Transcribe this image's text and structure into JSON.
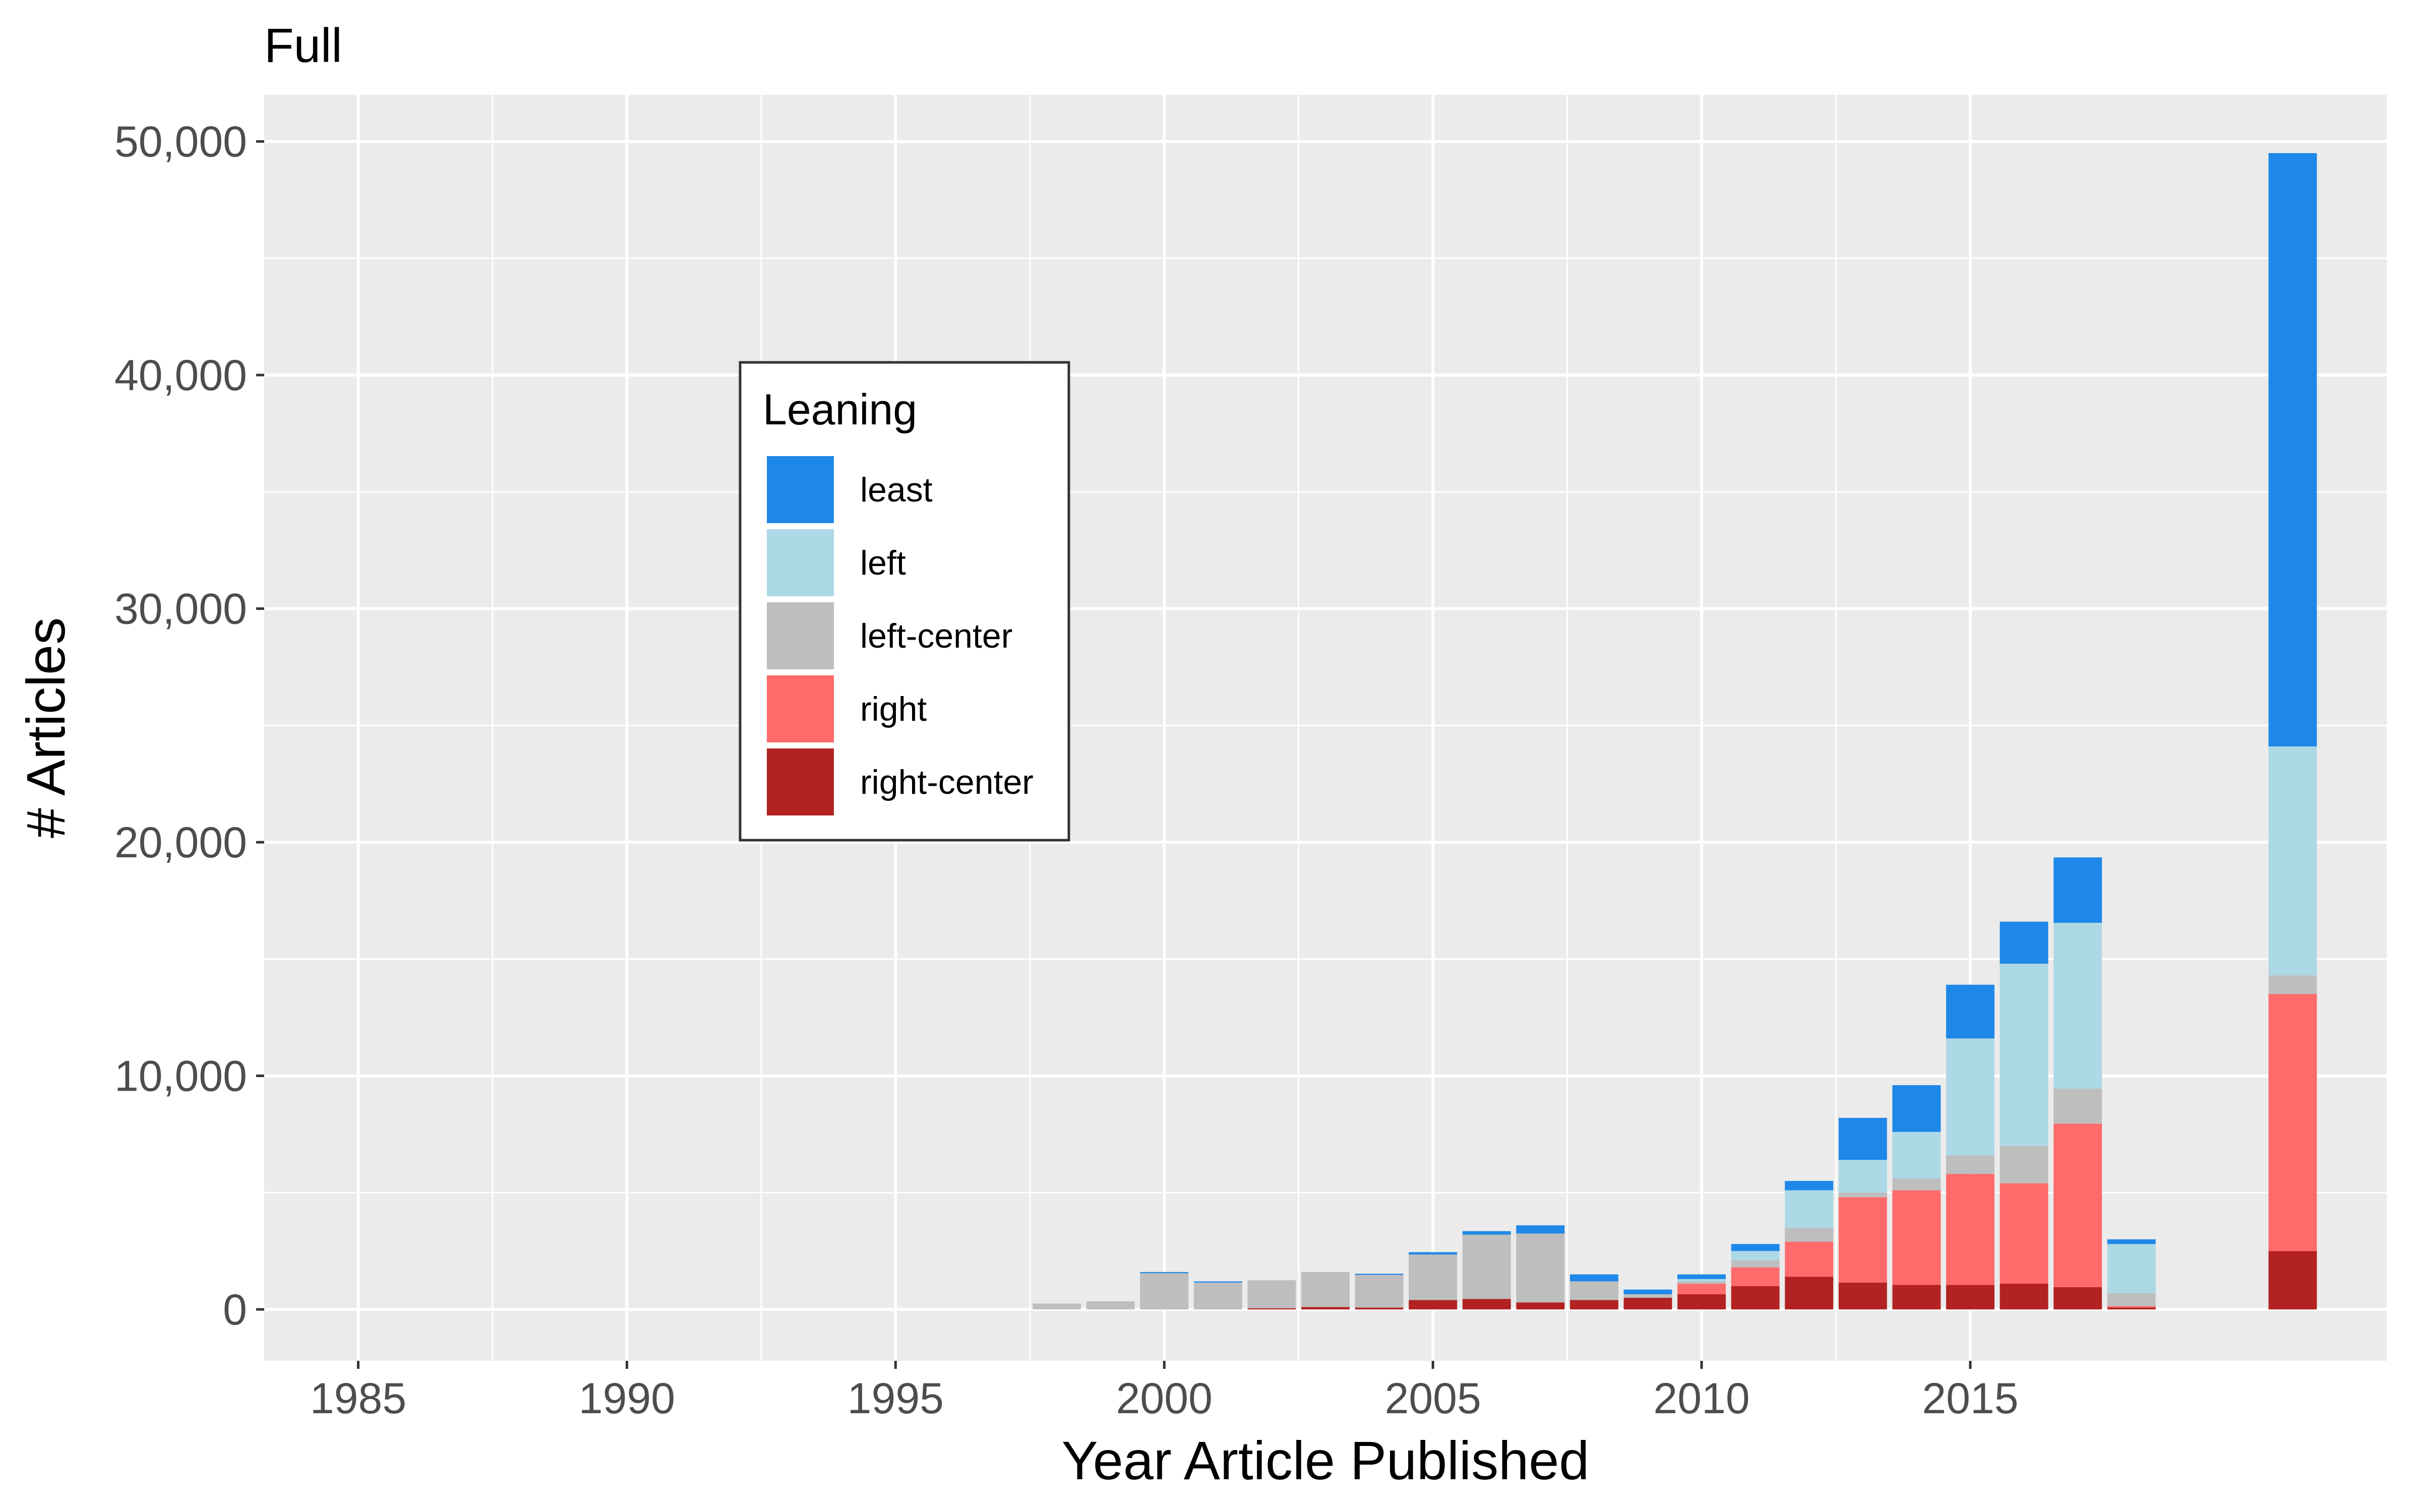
{
  "chart_data": {
    "type": "bar",
    "stacked": true,
    "title": "Full",
    "xlabel": "Year Article Published",
    "ylabel": "# Articles",
    "xlim": [
      1983.25,
      2022.75
    ],
    "ylim": [
      -2200,
      52000
    ],
    "x_ticks": [
      1985,
      1990,
      1995,
      2000,
      2005,
      2010,
      2015
    ],
    "x_tick_labels": [
      "1985",
      "1990",
      "1995",
      "2000",
      "2005",
      "2010",
      "2015"
    ],
    "y_ticks": [
      0,
      10000,
      20000,
      30000,
      40000,
      50000
    ],
    "y_tick_labels": [
      "0",
      "10,000",
      "20,000",
      "30,000",
      "40,000",
      "50,000"
    ],
    "grid": true,
    "legend": {
      "title": "Leaning",
      "position": "inside-left"
    },
    "x": [
      1998,
      1999,
      2000,
      2001,
      2002,
      2003,
      2004,
      2005,
      2006,
      2007,
      2008,
      2009,
      2010,
      2011,
      2012,
      2013,
      2014,
      2015,
      2016,
      2017,
      2018,
      2021
    ],
    "series": [
      {
        "name": "right-center",
        "color": "#B22222",
        "values": [
          0,
          0,
          0,
          0,
          50,
          100,
          80,
          400,
          450,
          300,
          400,
          500,
          650,
          1000,
          1400,
          1150,
          1050,
          1050,
          1100,
          950,
          80,
          2500
        ]
      },
      {
        "name": "right",
        "color": "#FF6A6A",
        "values": [
          0,
          0,
          0,
          0,
          0,
          0,
          0,
          0,
          0,
          0,
          0,
          0,
          450,
          800,
          1500,
          3650,
          4050,
          4750,
          4300,
          7000,
          60,
          11000
        ]
      },
      {
        "name": "left-center",
        "color": "#BEBEBE",
        "values": [
          250,
          350,
          1550,
          1150,
          1200,
          1500,
          1400,
          1950,
          2750,
          2950,
          800,
          150,
          100,
          300,
          600,
          200,
          500,
          800,
          1600,
          1500,
          560,
          800
        ]
      },
      {
        "name": "left",
        "color": "#ADD8E6",
        "values": [
          0,
          0,
          0,
          0,
          0,
          0,
          0,
          0,
          0,
          0,
          0,
          0,
          100,
          400,
          1600,
          1400,
          2000,
          5000,
          7800,
          7100,
          2100,
          9800
        ]
      },
      {
        "name": "least",
        "color": "#1E88E8",
        "values": [
          0,
          0,
          50,
          50,
          0,
          0,
          50,
          100,
          150,
          350,
          300,
          200,
          200,
          300,
          400,
          1800,
          2000,
          2300,
          1800,
          2800,
          200,
          25400
        ]
      }
    ]
  },
  "colors": {
    "panel_bg": "#EBEBEB",
    "grid": "#FFFFFF",
    "tick_label": "#4D4D4D",
    "tick_mark": "#333333",
    "legend_border": "#333333"
  }
}
